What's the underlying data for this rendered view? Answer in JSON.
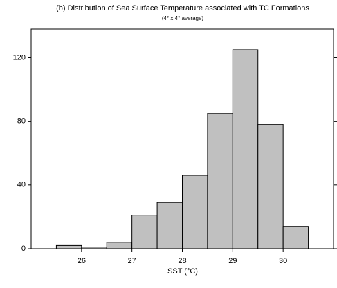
{
  "chart_data": {
    "type": "histogram",
    "title": "(b) Distribution of Sea Surface Temperature associated with TC Formations",
    "subtitle": "(4° x 4° average)",
    "x_label": "SST (°C)",
    "bins": [
      25,
      25.5,
      26,
      26.5,
      27,
      27.5,
      28,
      28.5,
      29,
      29.5,
      30,
      30.5,
      31
    ],
    "values": [
      0,
      2,
      1,
      4,
      21,
      29,
      46,
      85,
      125,
      78,
      14,
      0
    ],
    "color": "#c0c0c0",
    "xlim": [
      25,
      31
    ],
    "xticks": [
      26,
      27,
      28,
      29,
      30
    ],
    "ylim": [
      0,
      138
    ],
    "yticks": [
      0,
      40,
      80,
      120
    ]
  }
}
